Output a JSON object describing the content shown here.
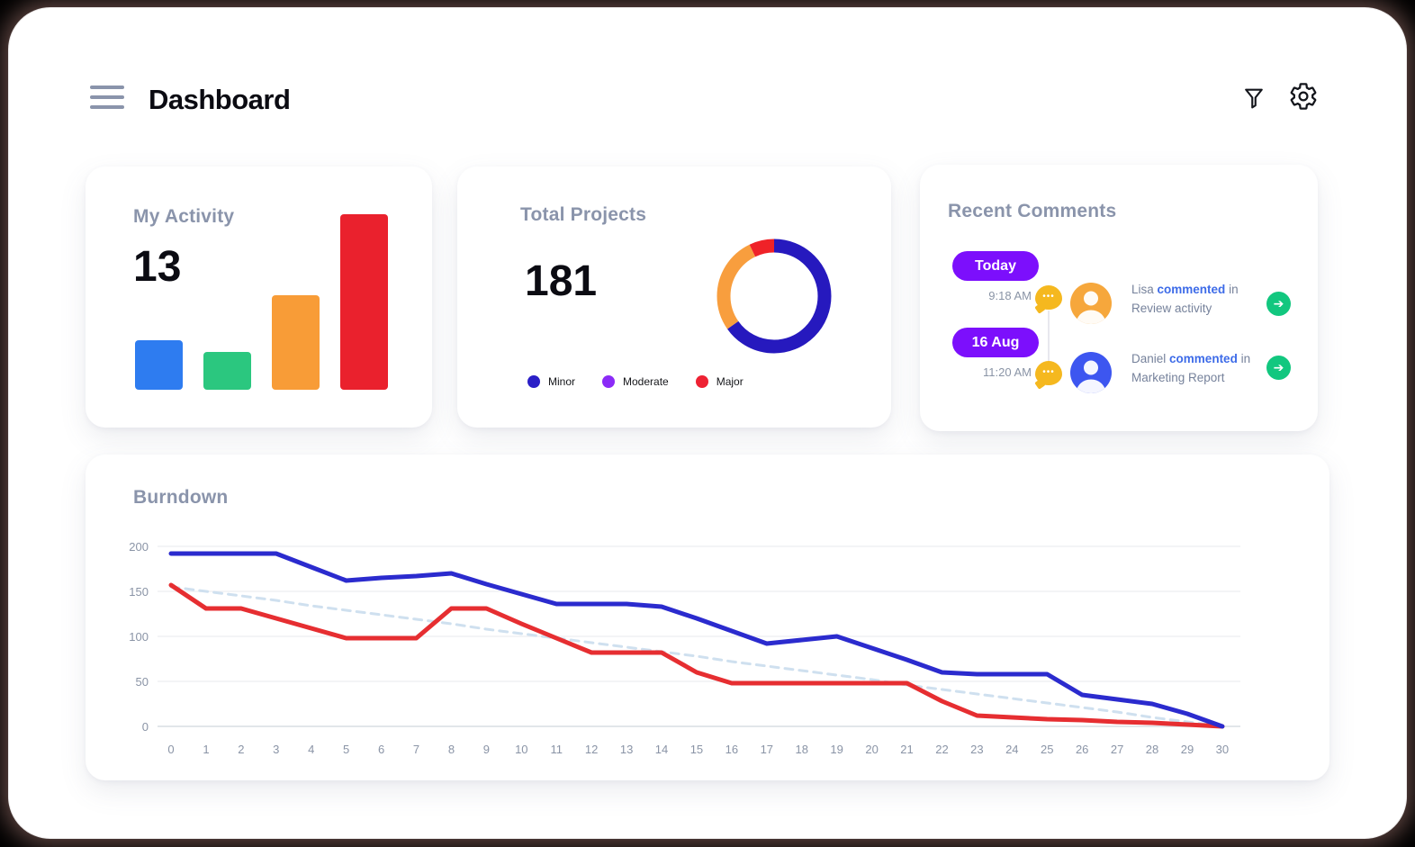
{
  "header": {
    "title": "Dashboard"
  },
  "icons": {
    "menu": "hamburger",
    "filter": "funnel",
    "settings": "gear",
    "comment": "speech-bubble-dots",
    "go": "arrow-right-circle"
  },
  "activity": {
    "title": "My Activity",
    "value": "13"
  },
  "projects": {
    "title": "Total Projects",
    "value": "181"
  },
  "comments": {
    "title": "Recent Comments",
    "entries": [
      {
        "badge": "Today",
        "time": "9:18 AM",
        "name": "Lisa",
        "action": "commented",
        "preposition": "in",
        "target": "Review activity",
        "avatar_bg": "#F6A73C"
      },
      {
        "badge": "16 Aug",
        "time": "11:20 AM",
        "name": "Daniel",
        "action": "commented",
        "preposition": "in",
        "target": "Marketing Report",
        "avatar_bg": "#3D56F0"
      }
    ]
  },
  "burndown": {
    "title": "Burndown"
  },
  "colors": {
    "badge_purple": "#7C0FFC",
    "action_blue": "#3D6BE8",
    "arrow_green": "#12C77F",
    "bubble_yellow": "#F5B81F",
    "title_gray": "#8A94AB",
    "axis_gray": "#8A94A6"
  },
  "chart_data": [
    {
      "type": "bar",
      "title": "My Activity",
      "categories": [
        "bar-1",
        "bar-2",
        "bar-3",
        "bar-4"
      ],
      "values": [
        55,
        42,
        105,
        195
      ],
      "value_units": "relative-height",
      "colors": [
        "#2E7CF0",
        "#2BC77F",
        "#F89C37",
        "#EA212D"
      ],
      "xlabel": "",
      "ylabel": "",
      "grid": false
    },
    {
      "type": "pie",
      "subtype": "donut",
      "title": "Total Projects",
      "center_total": 181,
      "labels": [
        "Minor",
        "Moderate",
        "Major"
      ],
      "values": [
        118,
        50,
        13
      ],
      "segment_colors": [
        "#2619BE",
        "#F89E3E",
        "#EF2228"
      ],
      "legend_dot_colors": [
        "#2B1FC7",
        "#8B2BF7",
        "#EE2233"
      ],
      "legend_position": "bottom",
      "start_angle_deg": 0,
      "direction": "clockwise"
    },
    {
      "type": "line",
      "title": "Burndown",
      "x": [
        0,
        1,
        2,
        3,
        4,
        5,
        6,
        7,
        8,
        9,
        10,
        11,
        12,
        13,
        14,
        15,
        16,
        17,
        18,
        19,
        20,
        21,
        22,
        23,
        24,
        25,
        26,
        27,
        28,
        29,
        30
      ],
      "series": [
        {
          "name": "ideal-dashed",
          "color": "#CFE0EF",
          "dash": [
            9,
            7
          ],
          "width": 3,
          "values": [
            155,
            150,
            145,
            140,
            134,
            129,
            124,
            119,
            114,
            108,
            103,
            98,
            93,
            88,
            83,
            78,
            72,
            67,
            62,
            57,
            52,
            46,
            41,
            36,
            31,
            26,
            21,
            16,
            10,
            5,
            0
          ]
        },
        {
          "name": "series-red",
          "color": "#E62E31",
          "dash": null,
          "width": 5,
          "values": [
            157,
            131,
            131,
            120,
            109,
            98,
            98,
            98,
            131,
            131,
            114,
            98,
            82,
            82,
            82,
            60,
            48,
            48,
            48,
            48,
            48,
            48,
            28,
            12,
            10,
            8,
            7,
            5,
            4,
            2,
            0
          ]
        },
        {
          "name": "series-blue",
          "color": "#2B2BCE",
          "dash": null,
          "width": 5,
          "values": [
            192,
            192,
            192,
            192,
            177,
            162,
            165,
            167,
            170,
            158,
            147,
            136,
            136,
            136,
            133,
            120,
            106,
            92,
            96,
            100,
            87,
            74,
            60,
            58,
            58,
            58,
            35,
            30,
            25,
            14,
            0
          ]
        }
      ],
      "ylim": [
        0,
        200
      ],
      "yticks": [
        0,
        50,
        100,
        150,
        200
      ],
      "xticks": [
        0,
        1,
        2,
        3,
        4,
        5,
        6,
        7,
        8,
        9,
        10,
        11,
        12,
        13,
        14,
        15,
        16,
        17,
        18,
        19,
        20,
        21,
        22,
        23,
        24,
        25,
        26,
        27,
        28,
        29,
        30
      ],
      "grid": true,
      "legend_position": "none"
    }
  ]
}
